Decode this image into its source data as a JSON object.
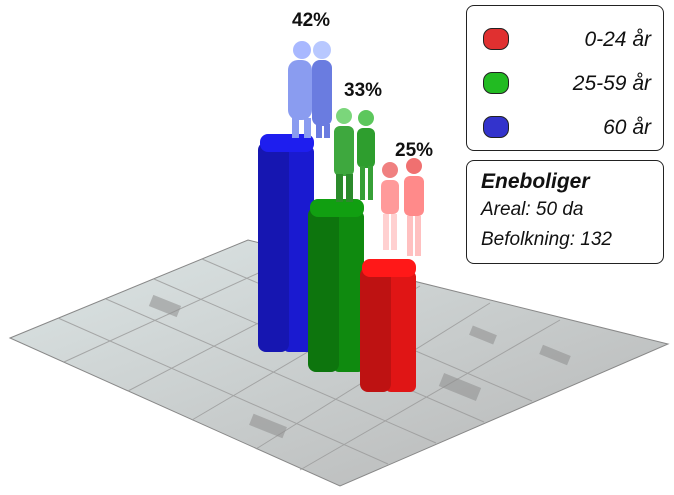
{
  "chart_data": {
    "type": "bar",
    "title": "",
    "xlabel": "",
    "ylabel": "",
    "ylim": [
      0,
      45
    ],
    "categories": [
      "60 år",
      "25-59 år",
      "0-24 år"
    ],
    "values": [
      42,
      33,
      25
    ],
    "data_labels": [
      "42%",
      "33%",
      "25%"
    ],
    "colors": [
      "#1a1ad0",
      "#0f8a0f",
      "#e01515"
    ],
    "legend": {
      "placement": "top-right",
      "entries": [
        {
          "label": "0-24 år",
          "color": "#e03030"
        },
        {
          "label": "25-59 år",
          "color": "#22bb22"
        },
        {
          "label": "60 år",
          "color": "#3333cc"
        }
      ]
    }
  },
  "info": {
    "title": "Eneboliger",
    "area": "Areal: 50 da",
    "population": "Befolkning: 132"
  },
  "icons": [
    "elderly-couple-icon",
    "adult-couple-icon",
    "young-couple-icon",
    "city-map-ground"
  ]
}
